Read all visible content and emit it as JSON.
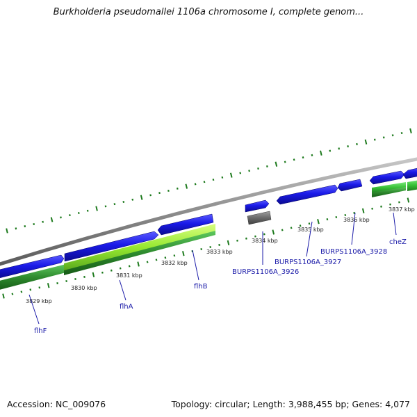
{
  "title": "Burkholderia pseudomallei 1106a chromosome I, complete genom...",
  "accession": "Accession: NC_009076",
  "summary": "Topology: circular; Length: 3,988,455 bp; Genes: 4,077",
  "colors": {
    "backbone": "#8c8c8c",
    "cds": "#1414e0",
    "gc_skew_light": "#9aee3a",
    "gc_skew_dark": "#2f8f2f",
    "pseudo": "#6f6f6f",
    "ticks": "#1d7a1d",
    "gene_label": "#1a1aa8"
  },
  "scale": {
    "unit": "kbp",
    "labels": [
      "3829 kbp",
      "3830 kbp",
      "3831 kbp",
      "3832 kbp",
      "3833 kbp",
      "3834 kbp",
      "3835 kbp",
      "3836 kbp",
      "3837 kbp"
    ]
  },
  "genes": [
    {
      "name": "flhF"
    },
    {
      "name": "flhA"
    },
    {
      "name": "flhB"
    },
    {
      "name": "BURPS1106A_3926"
    },
    {
      "name": "BURPS1106A_3927"
    },
    {
      "name": "BURPS1106A_3928"
    },
    {
      "name": "cheZ"
    }
  ]
}
